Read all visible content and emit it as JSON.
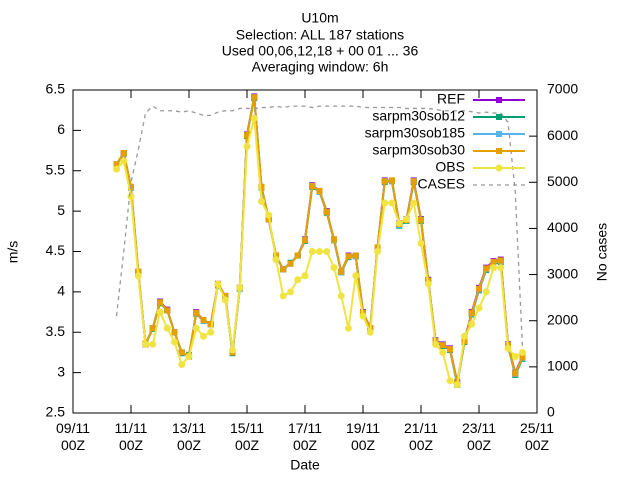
{
  "chart_data": {
    "type": "line",
    "title": [
      "U10m",
      "Selection: ALL    187 stations",
      "Used 00,06,12,18 + 00 01 ... 36",
      "Averaging window:  6h"
    ],
    "x_label": "Date",
    "y_label": "m/s",
    "y2_label": "No cases",
    "xlim": [
      "09/11 00Z",
      "25/11 00Z"
    ],
    "xticks": [
      "09/11 00Z",
      "11/11 00Z",
      "13/11 00Z",
      "15/11 00Z",
      "17/11 00Z",
      "19/11 00Z",
      "21/11 00Z",
      "23/11 00Z",
      "25/11 00Z"
    ],
    "ylim": [
      2.5,
      6.5
    ],
    "yticks": [
      2.5,
      3,
      3.5,
      4,
      4.5,
      5,
      5.5,
      6,
      6.5
    ],
    "y2lim": [
      0,
      7000
    ],
    "y2ticks": [
      0,
      1000,
      2000,
      3000,
      4000,
      5000,
      6000,
      7000
    ],
    "legend": "top-right",
    "x": [
      "10/11 12Z",
      "10/11 18Z",
      "11/11 00Z",
      "11/11 06Z",
      "11/11 12Z",
      "11/11 18Z",
      "12/11 00Z",
      "12/11 06Z",
      "12/11 12Z",
      "12/11 18Z",
      "13/11 00Z",
      "13/11 06Z",
      "13/11 12Z",
      "13/11 18Z",
      "14/11 00Z",
      "14/11 06Z",
      "14/11 12Z",
      "14/11 18Z",
      "15/11 00Z",
      "15/11 06Z",
      "15/11 12Z",
      "15/11 18Z",
      "16/11 00Z",
      "16/11 06Z",
      "16/11 12Z",
      "16/11 18Z",
      "17/11 00Z",
      "17/11 06Z",
      "17/11 12Z",
      "17/11 18Z",
      "18/11 00Z",
      "18/11 06Z",
      "18/11 12Z",
      "18/11 18Z",
      "19/11 00Z",
      "19/11 06Z",
      "19/11 12Z",
      "19/11 18Z",
      "20/11 00Z",
      "20/11 06Z",
      "20/11 12Z",
      "20/11 18Z",
      "21/11 00Z",
      "21/11 06Z",
      "21/11 12Z",
      "21/11 18Z",
      "22/11 00Z",
      "22/11 06Z",
      "22/11 12Z",
      "22/11 18Z",
      "23/11 00Z",
      "23/11 06Z",
      "23/11 12Z",
      "23/11 18Z",
      "24/11 00Z",
      "24/11 06Z",
      "24/11 12Z"
    ],
    "series": [
      {
        "name": "REF",
        "color": "#9400d3",
        "marker": "square",
        "values": [
          5.58,
          5.72,
          5.3,
          4.25,
          3.35,
          3.55,
          3.88,
          3.78,
          3.5,
          3.25,
          3.2,
          3.75,
          3.65,
          3.6,
          4.1,
          3.95,
          3.25,
          4.05,
          5.95,
          6.42,
          5.3,
          4.9,
          4.45,
          4.28,
          4.35,
          4.45,
          4.65,
          5.32,
          5.25,
          5.0,
          4.65,
          4.25,
          4.45,
          4.45,
          3.75,
          3.55,
          4.55,
          5.38,
          5.38,
          4.85,
          4.9,
          5.38,
          4.9,
          4.15,
          3.4,
          3.35,
          3.3,
          2.88,
          3.4,
          3.75,
          4.05,
          4.3,
          4.38,
          4.4,
          3.35,
          3.0,
          3.2
        ]
      },
      {
        "name": "sarpm30sob12",
        "color": "#009e73",
        "marker": "square",
        "values": [
          5.57,
          5.71,
          5.29,
          4.24,
          3.36,
          3.54,
          3.86,
          3.77,
          3.5,
          3.24,
          3.22,
          3.73,
          3.64,
          3.6,
          4.08,
          3.94,
          3.24,
          4.04,
          5.93,
          6.4,
          5.29,
          4.9,
          4.44,
          4.28,
          4.36,
          4.45,
          4.63,
          5.3,
          5.24,
          4.98,
          4.64,
          4.24,
          4.43,
          4.44,
          3.73,
          3.55,
          4.54,
          5.36,
          5.37,
          4.82,
          4.88,
          5.36,
          4.88,
          4.13,
          3.38,
          3.33,
          3.28,
          2.85,
          3.38,
          3.72,
          4.02,
          4.27,
          4.35,
          4.37,
          3.33,
          2.97,
          3.17
        ]
      },
      {
        "name": "sarpm30sob185",
        "color": "#56b4e9",
        "marker": "square",
        "values": [
          5.57,
          5.71,
          5.29,
          4.24,
          3.36,
          3.55,
          3.87,
          3.77,
          3.5,
          3.25,
          3.21,
          3.74,
          3.64,
          3.6,
          4.09,
          3.94,
          3.25,
          4.04,
          5.94,
          6.41,
          5.29,
          4.9,
          4.44,
          4.28,
          4.35,
          4.45,
          4.64,
          5.31,
          5.24,
          4.99,
          4.64,
          4.24,
          4.44,
          4.44,
          3.74,
          3.55,
          4.54,
          5.37,
          5.37,
          4.83,
          4.89,
          5.37,
          4.89,
          4.14,
          3.39,
          3.34,
          3.29,
          2.86,
          3.39,
          3.73,
          4.03,
          4.28,
          4.36,
          4.38,
          3.34,
          2.98,
          3.18
        ]
      },
      {
        "name": "sarpm30sob30",
        "color": "#e69f00",
        "marker": "square",
        "values": [
          5.58,
          5.72,
          5.3,
          4.25,
          3.36,
          3.55,
          3.87,
          3.77,
          3.5,
          3.25,
          3.21,
          3.74,
          3.65,
          3.6,
          4.09,
          3.95,
          3.25,
          4.05,
          5.94,
          6.41,
          5.3,
          4.9,
          4.45,
          4.28,
          4.35,
          4.45,
          4.64,
          5.31,
          5.25,
          4.99,
          4.65,
          4.25,
          4.44,
          4.45,
          3.74,
          3.55,
          4.55,
          5.37,
          5.38,
          4.84,
          4.89,
          5.37,
          4.89,
          4.14,
          3.39,
          3.34,
          3.29,
          2.87,
          3.39,
          3.74,
          4.04,
          4.29,
          4.37,
          4.39,
          3.34,
          2.99,
          3.19
        ]
      },
      {
        "name": "OBS",
        "color": "#f0e442",
        "marker": "circle",
        "values": [
          5.52,
          5.62,
          5.18,
          4.2,
          3.35,
          3.35,
          3.75,
          3.55,
          3.38,
          3.1,
          3.2,
          3.55,
          3.45,
          3.5,
          4.1,
          3.9,
          3.28,
          4.05,
          5.8,
          6.15,
          5.12,
          4.95,
          4.4,
          3.95,
          4.0,
          4.15,
          4.2,
          4.5,
          4.5,
          4.5,
          4.3,
          3.95,
          3.55,
          4.2,
          3.7,
          3.5,
          4.5,
          5.1,
          5.1,
          4.85,
          4.9,
          5.1,
          4.6,
          4.1,
          3.35,
          3.25,
          2.9,
          2.85,
          3.45,
          3.6,
          3.8,
          4.0,
          4.3,
          4.3,
          3.3,
          3.2,
          3.25
        ]
      },
      {
        "name": "CASES",
        "color": "#999999",
        "axis": "y2",
        "dashed": true,
        "values": [
          2100,
          3500,
          5000,
          5700,
          6500,
          6650,
          6550,
          6550,
          6550,
          6520,
          6550,
          6500,
          6450,
          6450,
          6520,
          6550,
          6550,
          6600,
          6600,
          6600,
          6620,
          6620,
          6650,
          6620,
          6650,
          6650,
          6650,
          6620,
          6650,
          6650,
          6650,
          6650,
          6650,
          6650,
          6620,
          6620,
          6620,
          6620,
          6620,
          6620,
          6600,
          6600,
          6600,
          6600,
          6580,
          6550,
          6550,
          6550,
          6550,
          6530,
          6500,
          6520,
          6500,
          6500,
          6300,
          4800,
          1400
        ]
      }
    ]
  }
}
